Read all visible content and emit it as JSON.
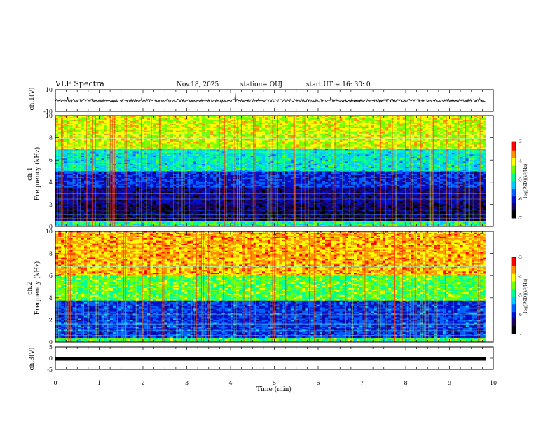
{
  "header": {
    "title": "VLF Spectra",
    "date": "Nov.18, 2025",
    "station": "station= OUJ",
    "start": "start  UT  =   16: 30: 0"
  },
  "chart_data": [
    {
      "type": "line",
      "name": "ch1-waveform",
      "title": "",
      "xlabel": "",
      "ylabel": "ch.1(V)",
      "ylim": [
        -10,
        10
      ],
      "yticks": [
        "10",
        "-10"
      ],
      "description_series": "raw waveform, near 0 V with spikes",
      "baseline": 0.0
    },
    {
      "type": "heatmap",
      "name": "ch1-spectrogram",
      "ylabel_line1": "ch.1",
      "ylabel_line2": "Frequency  (kHz)",
      "ylim": [
        0,
        10
      ],
      "yticks": [
        "0",
        "2",
        "4",
        "6",
        "8",
        "10"
      ],
      "xlim": [
        0,
        10
      ],
      "colorbar": {
        "label": "log(PSD)(V²/Hz)",
        "range": [
          -7,
          -3
        ],
        "ticks": [
          "-3",
          "-4",
          "-5",
          "-6",
          "-7"
        ]
      }
    },
    {
      "type": "heatmap",
      "name": "ch2-spectrogram",
      "ylabel_line1": "ch.2",
      "ylabel_line2": "Frequency  (kHz)",
      "ylim": [
        0,
        10
      ],
      "yticks": [
        "0",
        "2",
        "4",
        "6",
        "8",
        "10"
      ],
      "xlim": [
        0,
        10
      ],
      "colorbar": {
        "label": "log(PSD)(V²/Hz)",
        "range": [
          -7,
          -3
        ],
        "ticks": [
          "-3",
          "-4",
          "-5",
          "-6",
          "-7"
        ]
      }
    },
    {
      "type": "line",
      "name": "ch3-waveform",
      "ylabel": "ch.3(V)",
      "ylim": [
        -5,
        5
      ],
      "yticks": [
        "5",
        "0",
        "-5"
      ],
      "baseline": -0.3
    }
  ],
  "xaxis": {
    "label": "Time  (min)",
    "range": [
      0,
      10
    ],
    "ticks": [
      "0",
      "1",
      "2",
      "3",
      "4",
      "5",
      "6",
      "7",
      "8",
      "9",
      "10"
    ],
    "data_end": 9.83
  },
  "colors": {
    "colormap": [
      "#000000",
      "#1a0060",
      "#0010c8",
      "#0060ff",
      "#00c8ff",
      "#00ff90",
      "#70ff00",
      "#ffff00",
      "#ff9000",
      "#ff0000"
    ]
  }
}
